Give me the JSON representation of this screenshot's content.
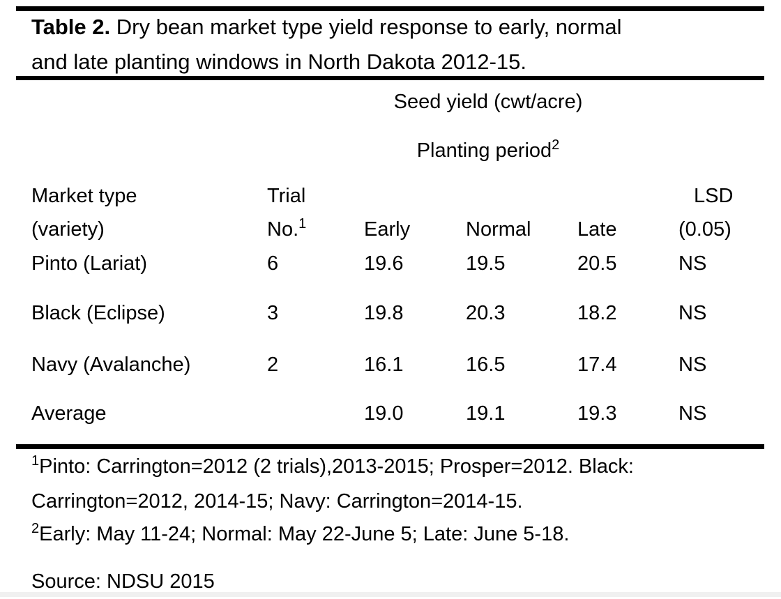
{
  "title": {
    "prefix": "Table 2.",
    "rest_line1": " Dry bean market type yield response to early, normal",
    "line2": "and late planting windows in North Dakota 2012-15."
  },
  "table": {
    "span_header_seed_yield": "Seed yield (cwt/acre)",
    "span_header_planting": {
      "text": "Planting period",
      "sup": "2"
    },
    "headers": {
      "market_type_line1": "Market type",
      "market_type_line2": "(variety)",
      "trial_line1": "Trial",
      "trial_line2": "No.",
      "trial_sup": "1",
      "early": "Early",
      "normal": "Normal",
      "late": "Late",
      "lsd_line1": "LSD",
      "lsd_line2": "(0.05)"
    },
    "rows": [
      {
        "market_type": "Pinto (Lariat)",
        "trial_no": "6",
        "early": "19.6",
        "normal": "19.5",
        "late": "20.5",
        "lsd": "NS"
      },
      {
        "market_type": "Black (Eclipse)",
        "trial_no": "3",
        "early": "19.8",
        "normal": "20.3",
        "late": "18.2",
        "lsd": "NS"
      },
      {
        "market_type": "Navy (Avalanche)",
        "trial_no": "2",
        "early": "16.1",
        "normal": "16.5",
        "late": "17.4",
        "lsd": "NS"
      },
      {
        "market_type": "Average",
        "trial_no": "",
        "early": "19.0",
        "normal": "19.1",
        "late": "19.3",
        "lsd": "NS"
      }
    ]
  },
  "footnotes": {
    "fn1": {
      "sup": "1",
      "line1": "Pinto: Carrington=2012 (2 trials),2013-2015; Prosper=2012. Black:",
      "line2": "Carrington=2012, 2014-15; Navy: Carrington=2014-15."
    },
    "fn2": {
      "sup": "2",
      "text": "Early: May 11-24; Normal: May 22-June 5; Late: June 5-18."
    }
  },
  "source": "Source: NDSU 2015",
  "colors": {
    "text": "#000000",
    "background": "#ffffff",
    "rule": "#000000",
    "bottom_strip": "#f0f0f0"
  }
}
